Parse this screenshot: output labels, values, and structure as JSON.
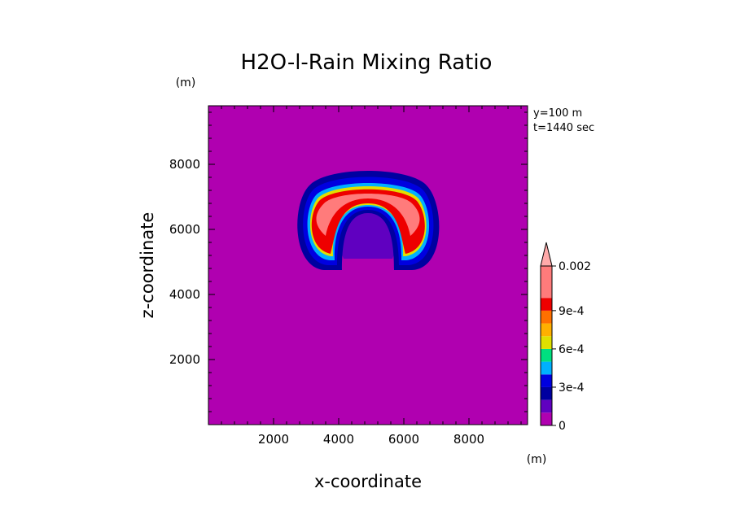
{
  "chart_data": {
    "type": "heatmap",
    "title": "H2O-l-Rain Mixing Ratio",
    "xlabel": "x-coordinate",
    "ylabel": "z-coordinate",
    "x_unit": "(m)",
    "y_unit": "(m)",
    "annotations": [
      "y=100 m",
      "t=1440 sec"
    ],
    "xlim": [
      0,
      9800
    ],
    "ylim": [
      0,
      9800
    ],
    "x_ticks": [
      2000,
      4000,
      6000,
      8000
    ],
    "y_ticks": [
      2000,
      4000,
      6000,
      8000
    ],
    "x_tick_labels": [
      "2000",
      "4000",
      "6000",
      "8000"
    ],
    "y_tick_labels": [
      "2000",
      "4000",
      "6000",
      "8000"
    ],
    "background_color": "#b000b0",
    "colorbar": {
      "levels": [
        0,
        0.0001,
        0.0002,
        0.0003,
        0.0004,
        0.0005,
        0.0006,
        0.0007,
        0.0008,
        0.0009,
        0.001,
        0.002
      ],
      "tick_labels": [
        {
          "value": 0,
          "label": "0"
        },
        {
          "value": 0.0003,
          "label": "3e-4"
        },
        {
          "value": 0.0006,
          "label": "6e-4"
        },
        {
          "value": 0.0009,
          "label": "9e-4"
        },
        {
          "value": 0.002,
          "label": "0.002"
        }
      ],
      "colors": [
        "#b000b0",
        "#6000c0",
        "#0000a0",
        "#0000e0",
        "#00b0ff",
        "#00e080",
        "#e0e000",
        "#ffb000",
        "#ff7000",
        "#ee0000",
        "#ff7b7b"
      ],
      "extend_top_color": "#ffaaaa"
    },
    "feature": {
      "shape": "horseshoe arch (inverted U)",
      "center_x": 5000,
      "center_z": 6300,
      "outer_radius": 2200,
      "leg_bottom_z": 4900,
      "max_value": 0.002
    }
  }
}
